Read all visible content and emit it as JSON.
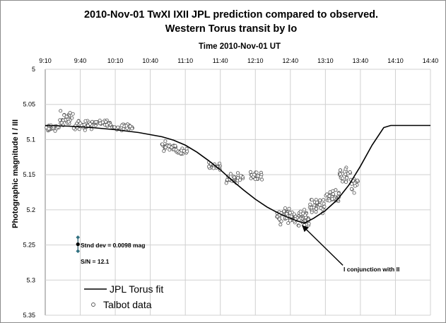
{
  "chart_data": {
    "type": "scatter",
    "title": "2010-Nov-01 TwXI IXII JPL prediction compared to observed.",
    "subtitle": "Western Torus transit by Io",
    "xlabel": "Time  2010-Nov-01 UT",
    "ylabel": "Photographic magnitude I / III",
    "x_tick_labels": [
      "9:10",
      "9:40",
      "10:10",
      "10:40",
      "11:10",
      "11:40",
      "12:10",
      "12:40",
      "13:10",
      "13:40",
      "14:10",
      "14:40"
    ],
    "y_tick_labels": [
      "5",
      "5.05",
      "5.1",
      "5.15",
      "5.2",
      "5.25",
      "5.3",
      "5.35"
    ],
    "xlim_minutes_after_9_10": [
      0,
      330
    ],
    "ylim": [
      5.0,
      5.35
    ],
    "y_inverted": true,
    "grid": true,
    "legend_position": "bottom-left",
    "series": [
      {
        "name": "JPL Torus fit",
        "kind": "line",
        "color": "#000000",
        "x_minutes_after_9_10": [
          0,
          20,
          40,
          60,
          80,
          100,
          110,
          120,
          130,
          140,
          150,
          160,
          170,
          180,
          190,
          200,
          210,
          216,
          222,
          230,
          240,
          250,
          260,
          270,
          280,
          290,
          296,
          330
        ],
        "y": [
          5.08,
          5.081,
          5.083,
          5.086,
          5.09,
          5.096,
          5.101,
          5.108,
          5.118,
          5.13,
          5.143,
          5.158,
          5.172,
          5.185,
          5.196,
          5.205,
          5.212,
          5.216,
          5.219,
          5.212,
          5.201,
          5.186,
          5.165,
          5.138,
          5.108,
          5.083,
          5.08,
          5.08
        ]
      },
      {
        "name": "Talbot data",
        "kind": "scatter",
        "marker": "hollow-circle",
        "color": "#555555",
        "segments": [
          {
            "x_range": [
              0,
              12
            ],
            "y_center": 5.083,
            "spread": 0.004,
            "n": 32
          },
          {
            "x_range": [
              12,
              24
            ],
            "y_center": 5.07,
            "spread": 0.009,
            "n": 30
          },
          {
            "x_range": [
              24,
              40
            ],
            "y_center": 5.08,
            "spread": 0.006,
            "n": 30
          },
          {
            "x_range": [
              40,
              56
            ],
            "y_center": 5.077,
            "spread": 0.004,
            "n": 30
          },
          {
            "x_range": [
              56,
              75
            ],
            "y_center": 5.082,
            "spread": 0.004,
            "n": 30
          },
          {
            "x_range": [
              100,
              112
            ],
            "y_center": 5.11,
            "spread": 0.006,
            "n": 30
          },
          {
            "x_range": [
              112,
              122
            ],
            "y_center": 5.118,
            "spread": 0.004,
            "n": 22
          },
          {
            "x_range": [
              140,
              150
            ],
            "y_center": 5.138,
            "spread": 0.005,
            "n": 24
          },
          {
            "x_range": [
              155,
              170
            ],
            "y_center": 5.155,
            "spread": 0.008,
            "n": 26
          },
          {
            "x_range": [
              175,
              186
            ],
            "y_center": 5.152,
            "spread": 0.006,
            "n": 24
          },
          {
            "x_range": [
              198,
              212
            ],
            "y_center": 5.21,
            "spread": 0.009,
            "n": 45
          },
          {
            "x_range": [
              212,
              226
            ],
            "y_center": 5.212,
            "spread": 0.01,
            "n": 55
          },
          {
            "x_range": [
              226,
              240
            ],
            "y_center": 5.195,
            "spread": 0.008,
            "n": 35
          },
          {
            "x_range": [
              240,
              252
            ],
            "y_center": 5.182,
            "spread": 0.009,
            "n": 30
          },
          {
            "x_range": [
              252,
              262
            ],
            "y_center": 5.148,
            "spread": 0.01,
            "n": 25
          },
          {
            "x_range": [
              262,
              268
            ],
            "y_center": 5.165,
            "spread": 0.01,
            "n": 15
          }
        ]
      }
    ],
    "error_bar": {
      "x_minutes_after_9_10": 28,
      "y": 5.249,
      "half_height": 0.0098
    },
    "annotations": {
      "std_dev": "Stnd dev = 0.0098 mag",
      "snr": "S/N = 12.1",
      "conjunction": "I conjunction with II",
      "conjunction_arrow_to": {
        "x_minutes_after_9_10": 220,
        "y": 5.222
      },
      "conjunction_label_at": {
        "x_minutes_after_9_10": 255,
        "y": 5.279
      }
    }
  }
}
